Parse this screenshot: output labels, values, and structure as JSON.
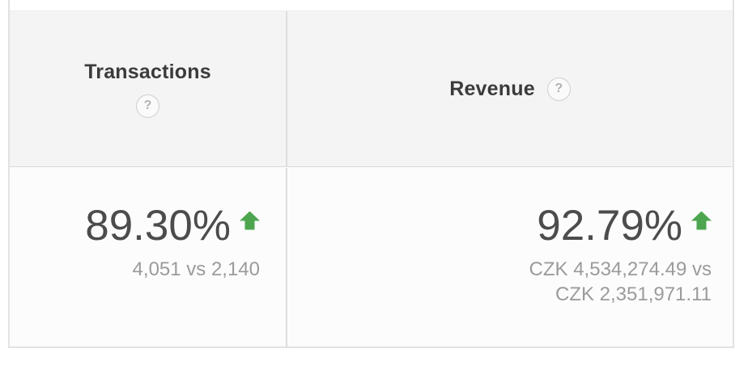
{
  "table": {
    "colors": {
      "header_bg": "#f4f4f4",
      "positive_trend": "#4da64f",
      "value_text": "#4c4c4c",
      "comparison_text": "#9b9b9b",
      "border": "#dddddd"
    },
    "columns": [
      {
        "key": "transactions",
        "header": {
          "label": "Transactions",
          "help": "?"
        },
        "metric": {
          "percent": "89.30%",
          "trend": "up",
          "comparison_lines": [
            "4,051 vs 2,140"
          ]
        }
      },
      {
        "key": "revenue",
        "header": {
          "label": "Revenue",
          "help": "?"
        },
        "metric": {
          "percent": "92.79%",
          "trend": "up",
          "comparison_lines": [
            "CZK 4,534,274.49 vs",
            "CZK 2,351,971.11"
          ]
        }
      }
    ]
  }
}
